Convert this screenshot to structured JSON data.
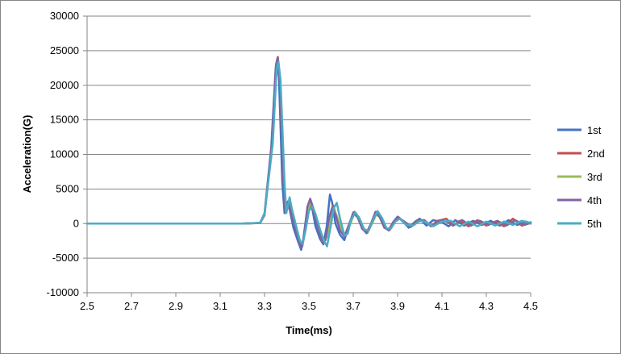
{
  "chart_data": {
    "type": "line",
    "xlabel": "Time(ms)",
    "ylabel": "Acceleration(G)",
    "xlim": [
      2.5,
      4.5
    ],
    "ylim": [
      -10000,
      30000
    ],
    "x_ticks": [
      "2.5",
      "2.7",
      "2.9",
      "3.1",
      "3.3",
      "3.5",
      "3.7",
      "3.9",
      "4.1",
      "4.3",
      "4.5"
    ],
    "y_ticks": [
      "-10000",
      "-5000",
      "0",
      "5000",
      "10000",
      "15000",
      "20000",
      "25000",
      "30000"
    ],
    "grid": "horizontal",
    "legend_position": "right",
    "series": [
      {
        "name": "1st",
        "color": "#4472C4",
        "points": [
          [
            2.5,
            0
          ],
          [
            3.2,
            0
          ],
          [
            3.28,
            100
          ],
          [
            3.3,
            1500
          ],
          [
            3.33,
            11000
          ],
          [
            3.35,
            22500
          ],
          [
            3.357,
            23800
          ],
          [
            3.365,
            21000
          ],
          [
            3.38,
            6000
          ],
          [
            3.39,
            1500
          ],
          [
            3.405,
            3200
          ],
          [
            3.415,
            1800
          ],
          [
            3.43,
            -600
          ],
          [
            3.45,
            -2500
          ],
          [
            3.465,
            -3800
          ],
          [
            3.475,
            -2200
          ],
          [
            3.49,
            1500
          ],
          [
            3.505,
            3200
          ],
          [
            3.515,
            2200
          ],
          [
            3.53,
            -400
          ],
          [
            3.55,
            -2200
          ],
          [
            3.565,
            -3000
          ],
          [
            3.58,
            -500
          ],
          [
            3.595,
            4200
          ],
          [
            3.605,
            3000
          ],
          [
            3.62,
            0
          ],
          [
            3.64,
            -1600
          ],
          [
            3.66,
            -2400
          ],
          [
            3.68,
            -300
          ],
          [
            3.7,
            1600
          ],
          [
            3.72,
            1000
          ],
          [
            3.74,
            -700
          ],
          [
            3.76,
            -1400
          ],
          [
            3.78,
            -200
          ],
          [
            3.8,
            1500
          ],
          [
            3.82,
            900
          ],
          [
            3.84,
            -500
          ],
          [
            3.86,
            -1000
          ],
          [
            3.88,
            200
          ],
          [
            3.9,
            1000
          ],
          [
            3.92,
            400
          ],
          [
            3.95,
            -600
          ],
          [
            3.98,
            300
          ],
          [
            4.0,
            700
          ],
          [
            4.03,
            -300
          ],
          [
            4.06,
            500
          ],
          [
            4.1,
            200
          ],
          [
            4.13,
            -400
          ],
          [
            4.16,
            500
          ],
          [
            4.2,
            -300
          ],
          [
            4.24,
            400
          ],
          [
            4.28,
            -200
          ],
          [
            4.32,
            400
          ],
          [
            4.36,
            -300
          ],
          [
            4.4,
            500
          ],
          [
            4.44,
            -200
          ],
          [
            4.48,
            300
          ],
          [
            4.5,
            0
          ]
        ]
      },
      {
        "name": "2nd",
        "color": "#C0504D",
        "points": [
          [
            2.5,
            0
          ],
          [
            3.2,
            0
          ],
          [
            3.28,
            80
          ],
          [
            3.3,
            1200
          ],
          [
            3.335,
            12000
          ],
          [
            3.352,
            23000
          ],
          [
            3.36,
            24100
          ],
          [
            3.368,
            21500
          ],
          [
            3.385,
            6500
          ],
          [
            3.395,
            1800
          ],
          [
            3.41,
            3000
          ],
          [
            3.42,
            1600
          ],
          [
            3.44,
            -800
          ],
          [
            3.46,
            -3000
          ],
          [
            3.47,
            -3300
          ],
          [
            3.48,
            -1600
          ],
          [
            3.495,
            1800
          ],
          [
            3.51,
            2600
          ],
          [
            3.525,
            1400
          ],
          [
            3.545,
            -1000
          ],
          [
            3.565,
            -2700
          ],
          [
            3.58,
            -1800
          ],
          [
            3.595,
            1300
          ],
          [
            3.61,
            2600
          ],
          [
            3.625,
            1000
          ],
          [
            3.645,
            -1200
          ],
          [
            3.665,
            -1800
          ],
          [
            3.685,
            0
          ],
          [
            3.705,
            1700
          ],
          [
            3.725,
            800
          ],
          [
            3.745,
            -900
          ],
          [
            3.765,
            -1300
          ],
          [
            3.785,
            100
          ],
          [
            3.805,
            1700
          ],
          [
            3.825,
            700
          ],
          [
            3.845,
            -700
          ],
          [
            3.865,
            -900
          ],
          [
            3.885,
            300
          ],
          [
            3.905,
            900
          ],
          [
            3.93,
            200
          ],
          [
            3.96,
            -500
          ],
          [
            3.99,
            400
          ],
          [
            4.02,
            500
          ],
          [
            4.05,
            -400
          ],
          [
            4.08,
            400
          ],
          [
            4.12,
            700
          ],
          [
            4.15,
            -300
          ],
          [
            4.18,
            400
          ],
          [
            4.22,
            -400
          ],
          [
            4.26,
            500
          ],
          [
            4.3,
            -300
          ],
          [
            4.34,
            300
          ],
          [
            4.38,
            -400
          ],
          [
            4.42,
            700
          ],
          [
            4.46,
            -300
          ],
          [
            4.5,
            200
          ]
        ]
      },
      {
        "name": "3rd",
        "color": "#9BBB59",
        "points": [
          [
            2.5,
            0
          ],
          [
            3.2,
            0
          ],
          [
            3.28,
            90
          ],
          [
            3.3,
            1300
          ],
          [
            3.335,
            11500
          ],
          [
            3.353,
            22800
          ],
          [
            3.361,
            23600
          ],
          [
            3.37,
            21000
          ],
          [
            3.387,
            6200
          ],
          [
            3.397,
            1600
          ],
          [
            3.412,
            3300
          ],
          [
            3.422,
            1900
          ],
          [
            3.44,
            -500
          ],
          [
            3.46,
            -2800
          ],
          [
            3.47,
            -3100
          ],
          [
            3.482,
            -1300
          ],
          [
            3.497,
            2200
          ],
          [
            3.51,
            3100
          ],
          [
            3.525,
            1800
          ],
          [
            3.545,
            -700
          ],
          [
            3.565,
            -2500
          ],
          [
            3.58,
            -2000
          ],
          [
            3.596,
            800
          ],
          [
            3.61,
            2200
          ],
          [
            3.625,
            1200
          ],
          [
            3.645,
            -900
          ],
          [
            3.665,
            -1700
          ],
          [
            3.685,
            -200
          ],
          [
            3.705,
            1500
          ],
          [
            3.725,
            1000
          ],
          [
            3.745,
            -600
          ],
          [
            3.765,
            -1200
          ],
          [
            3.785,
            0
          ],
          [
            3.805,
            1400
          ],
          [
            3.825,
            800
          ],
          [
            3.845,
            -600
          ],
          [
            3.865,
            -800
          ],
          [
            3.885,
            200
          ],
          [
            3.905,
            800
          ],
          [
            3.93,
            300
          ],
          [
            3.96,
            -400
          ],
          [
            3.99,
            300
          ],
          [
            4.02,
            400
          ],
          [
            4.05,
            -300
          ],
          [
            4.09,
            400
          ],
          [
            4.12,
            300
          ],
          [
            4.15,
            -300
          ],
          [
            4.19,
            500
          ],
          [
            4.23,
            -300
          ],
          [
            4.27,
            400
          ],
          [
            4.31,
            -200
          ],
          [
            4.35,
            400
          ],
          [
            4.39,
            -300
          ],
          [
            4.43,
            500
          ],
          [
            4.47,
            -200
          ],
          [
            4.5,
            100
          ]
        ]
      },
      {
        "name": "4th",
        "color": "#8064A2",
        "points": [
          [
            2.5,
            0
          ],
          [
            3.2,
            0
          ],
          [
            3.28,
            90
          ],
          [
            3.3,
            1300
          ],
          [
            3.335,
            11800
          ],
          [
            3.352,
            23000
          ],
          [
            3.36,
            23900
          ],
          [
            3.369,
            21200
          ],
          [
            3.386,
            6300
          ],
          [
            3.396,
            1700
          ],
          [
            3.411,
            3100
          ],
          [
            3.421,
            1700
          ],
          [
            3.44,
            -700
          ],
          [
            3.458,
            -2900
          ],
          [
            3.468,
            -3400
          ],
          [
            3.48,
            -1400
          ],
          [
            3.493,
            2400
          ],
          [
            3.506,
            3600
          ],
          [
            3.52,
            2200
          ],
          [
            3.54,
            -600
          ],
          [
            3.56,
            -2600
          ],
          [
            3.575,
            -2400
          ],
          [
            3.59,
            600
          ],
          [
            3.605,
            2300
          ],
          [
            3.62,
            1300
          ],
          [
            3.64,
            -1000
          ],
          [
            3.66,
            -1900
          ],
          [
            3.68,
            -200
          ],
          [
            3.7,
            1500
          ],
          [
            3.72,
            900
          ],
          [
            3.74,
            -700
          ],
          [
            3.76,
            -1300
          ],
          [
            3.78,
            0
          ],
          [
            3.8,
            1700
          ],
          [
            3.82,
            900
          ],
          [
            3.84,
            -600
          ],
          [
            3.86,
            -900
          ],
          [
            3.88,
            200
          ],
          [
            3.9,
            900
          ],
          [
            3.93,
            300
          ],
          [
            3.96,
            -400
          ],
          [
            3.99,
            300
          ],
          [
            4.02,
            500
          ],
          [
            4.05,
            -300
          ],
          [
            4.09,
            400
          ],
          [
            4.12,
            300
          ],
          [
            4.15,
            -300
          ],
          [
            4.19,
            500
          ],
          [
            4.23,
            -300
          ],
          [
            4.27,
            400
          ],
          [
            4.31,
            -200
          ],
          [
            4.35,
            400
          ],
          [
            4.39,
            -300
          ],
          [
            4.43,
            500
          ],
          [
            4.47,
            -200
          ],
          [
            4.5,
            100
          ]
        ]
      },
      {
        "name": "5th",
        "color": "#4BACC6",
        "points": [
          [
            2.5,
            0
          ],
          [
            3.2,
            0
          ],
          [
            3.28,
            100
          ],
          [
            3.3,
            1400
          ],
          [
            3.337,
            11500
          ],
          [
            3.355,
            22500
          ],
          [
            3.363,
            23400
          ],
          [
            3.372,
            20800
          ],
          [
            3.39,
            6000
          ],
          [
            3.398,
            1500
          ],
          [
            3.413,
            3800
          ],
          [
            3.423,
            2200
          ],
          [
            3.442,
            -300
          ],
          [
            3.46,
            -2500
          ],
          [
            3.472,
            -2900
          ],
          [
            3.485,
            -1000
          ],
          [
            3.5,
            1800
          ],
          [
            3.515,
            2500
          ],
          [
            3.53,
            1400
          ],
          [
            3.55,
            -800
          ],
          [
            3.567,
            -2400
          ],
          [
            3.582,
            -3300
          ],
          [
            3.598,
            -500
          ],
          [
            3.612,
            2200
          ],
          [
            3.626,
            3000
          ],
          [
            3.64,
            800
          ],
          [
            3.66,
            -1700
          ],
          [
            3.675,
            -1500
          ],
          [
            3.69,
            600
          ],
          [
            3.71,
            1600
          ],
          [
            3.73,
            600
          ],
          [
            3.75,
            -900
          ],
          [
            3.77,
            -1000
          ],
          [
            3.79,
            600
          ],
          [
            3.81,
            1800
          ],
          [
            3.83,
            800
          ],
          [
            3.85,
            -700
          ],
          [
            3.87,
            -700
          ],
          [
            3.89,
            300
          ],
          [
            3.91,
            700
          ],
          [
            3.94,
            -200
          ],
          [
            3.97,
            -300
          ],
          [
            4.0,
            400
          ],
          [
            4.03,
            200
          ],
          [
            4.06,
            -400
          ],
          [
            4.1,
            300
          ],
          [
            4.14,
            400
          ],
          [
            4.18,
            -400
          ],
          [
            4.22,
            300
          ],
          [
            4.26,
            -400
          ],
          [
            4.3,
            300
          ],
          [
            4.34,
            -300
          ],
          [
            4.38,
            300
          ],
          [
            4.42,
            -200
          ],
          [
            4.46,
            400
          ],
          [
            4.5,
            100
          ]
        ]
      }
    ]
  }
}
